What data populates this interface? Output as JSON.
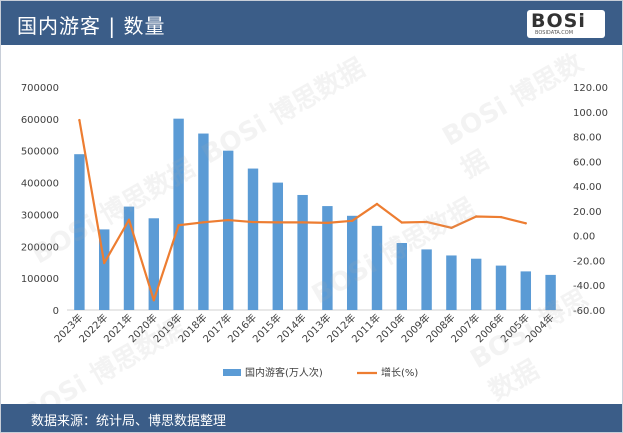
{
  "header": {
    "title": "国内游客 | 数量"
  },
  "logo": {
    "mark": "BOSi",
    "sub": "BOSIDATA.COM"
  },
  "footer": {
    "source": "数据来源：统计局、博思数据整理"
  },
  "watermark": {
    "text": "BOSi 博思数据"
  },
  "colors": {
    "header_bg": "#3b5d88",
    "bar": "#5b9bd5",
    "line": "#ed7d31"
  },
  "chart_data": {
    "type": "bar+line",
    "title": "",
    "categories": [
      "2023年",
      "2022年",
      "2021年",
      "2020年",
      "2019年",
      "2018年",
      "2017年",
      "2016年",
      "2015年",
      "2014年",
      "2013年",
      "2012年",
      "2011年",
      "2010年",
      "2009年",
      "2008年",
      "2007年",
      "2006年",
      "2005年",
      "2004年"
    ],
    "series": [
      {
        "name": "国内游客(万人次)",
        "type": "bar",
        "axis": "left",
        "values": [
          489100,
          253000,
          324600,
          287900,
          600600,
          553900,
          500100,
          444000,
          399900,
          361100,
          326200,
          295700,
          264100,
          210300,
          190200,
          171200,
          161000,
          139400,
          121200,
          110200
        ]
      },
      {
        "name": "增长(%)",
        "type": "line",
        "axis": "right",
        "values": [
          93.3,
          -22.1,
          12.8,
          -52.1,
          8.4,
          10.8,
          12.6,
          11.0,
          10.7,
          10.7,
          10.3,
          12.0,
          25.6,
          10.6,
          11.1,
          6.3,
          15.5,
          15.0,
          10.0,
          null
        ]
      }
    ],
    "y_left": {
      "min": 0,
      "max": 700000,
      "ticks": [
        "0",
        "100000",
        "200000",
        "300000",
        "400000",
        "500000",
        "600000",
        "700000"
      ]
    },
    "y_right": {
      "min": -60,
      "max": 120,
      "ticks": [
        "-60.00",
        "-40.00",
        "-20.00",
        "0.00",
        "20.00",
        "40.00",
        "60.00",
        "80.00",
        "100.00",
        "120.00"
      ]
    },
    "grid": false,
    "legend_position": "bottom"
  }
}
